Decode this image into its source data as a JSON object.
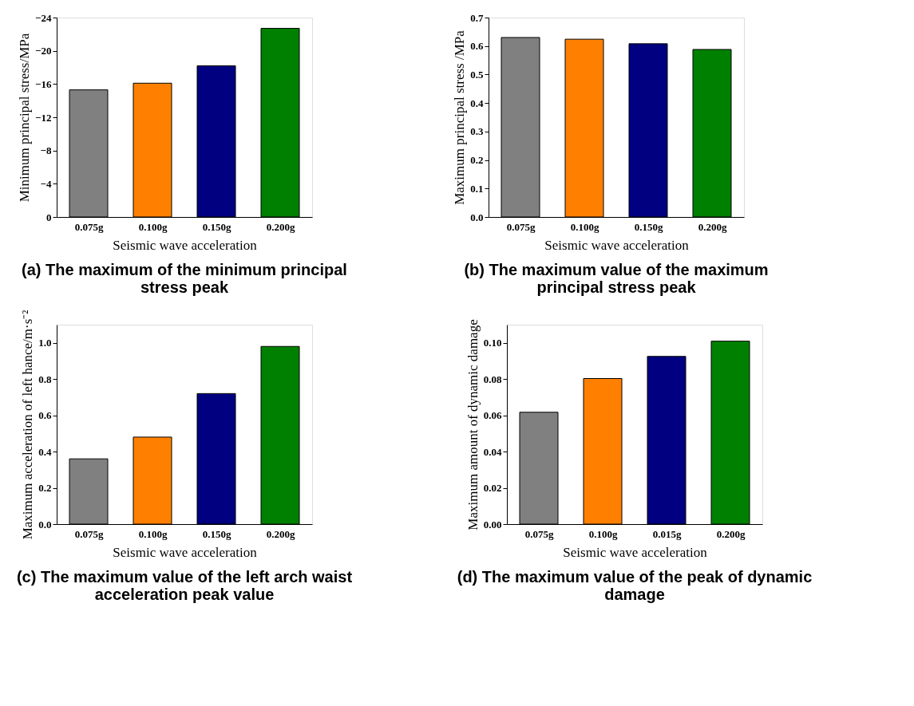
{
  "chart_data": [
    {
      "type": "bar",
      "title": "(a) The maximum of the minimum principal stress peak",
      "xlabel": "Seismic wave acceleration",
      "ylabel": "Minimum principal stress/MPa",
      "categories": [
        "0.075g",
        "0.100g",
        "0.150g",
        "0.200g"
      ],
      "values": [
        -15.3,
        -16.1,
        -18.2,
        -22.7
      ],
      "colors": [
        "#808080",
        "#ff8000",
        "#000080",
        "#008000"
      ],
      "ylim": [
        0,
        -24
      ],
      "yticks": [
        0,
        -4,
        -8,
        -12,
        -16,
        -20,
        -24
      ],
      "grid": false
    },
    {
      "type": "bar",
      "title": "(b) The maximum value of the maximum principal stress peak",
      "xlabel": "Seismic wave acceleration",
      "ylabel": "Maximum principal stress /MPa",
      "categories": [
        "0.075g",
        "0.100g",
        "0.150g",
        "0.200g"
      ],
      "values": [
        0.63,
        0.624,
        0.608,
        0.588
      ],
      "colors": [
        "#808080",
        "#ff8000",
        "#000080",
        "#008000"
      ],
      "ylim": [
        0,
        0.7
      ],
      "yticks": [
        {
          "value": 0,
          "label": "0.0"
        },
        0.1,
        0.2,
        0.3,
        0.4,
        0.5,
        0.6,
        0.7
      ],
      "grid": false
    },
    {
      "type": "bar",
      "title": "(c) The maximum value of the left arch waist acceleration peak value",
      "xlabel": "Seismic wave acceleration",
      "ylabel": "Maximum acceleration of left hance/m·s⁻²",
      "categories": [
        "0.075g",
        "0.100g",
        "0.150g",
        "0.200g"
      ],
      "values": [
        0.36,
        0.48,
        0.72,
        0.98
      ],
      "colors": [
        "#808080",
        "#ff8000",
        "#000080",
        "#008000"
      ],
      "ylim": [
        0,
        1.1
      ],
      "yticks": [
        {
          "value": 0,
          "label": "0.0"
        },
        0.2,
        0.4,
        0.6,
        0.8,
        {
          "value": 1.0,
          "label": "1.0"
        }
      ],
      "grid": false
    },
    {
      "type": "bar",
      "title": "(d) The maximum value of the peak of dynamic damage",
      "xlabel": "Seismic wave acceleration",
      "ylabel": "Maximum amount of dynamic damage",
      "categories": [
        "0.075g",
        "0.100g",
        "0.015g",
        "0.200g"
      ],
      "values": [
        0.0617,
        0.0803,
        0.0925,
        0.1009
      ],
      "colors": [
        "#808080",
        "#ff8000",
        "#000080",
        "#008000"
      ],
      "ylim": [
        0,
        0.11
      ],
      "yticks": [
        {
          "value": 0,
          "label": "0.00"
        },
        {
          "value": 0.02,
          "label": "0.02"
        },
        {
          "value": 0.04,
          "label": "0.04"
        },
        {
          "value": 0.06,
          "label": "0.06"
        },
        {
          "value": 0.08,
          "label": "0.08"
        },
        {
          "value": 0.1,
          "label": "0.10"
        }
      ],
      "grid": false
    }
  ]
}
